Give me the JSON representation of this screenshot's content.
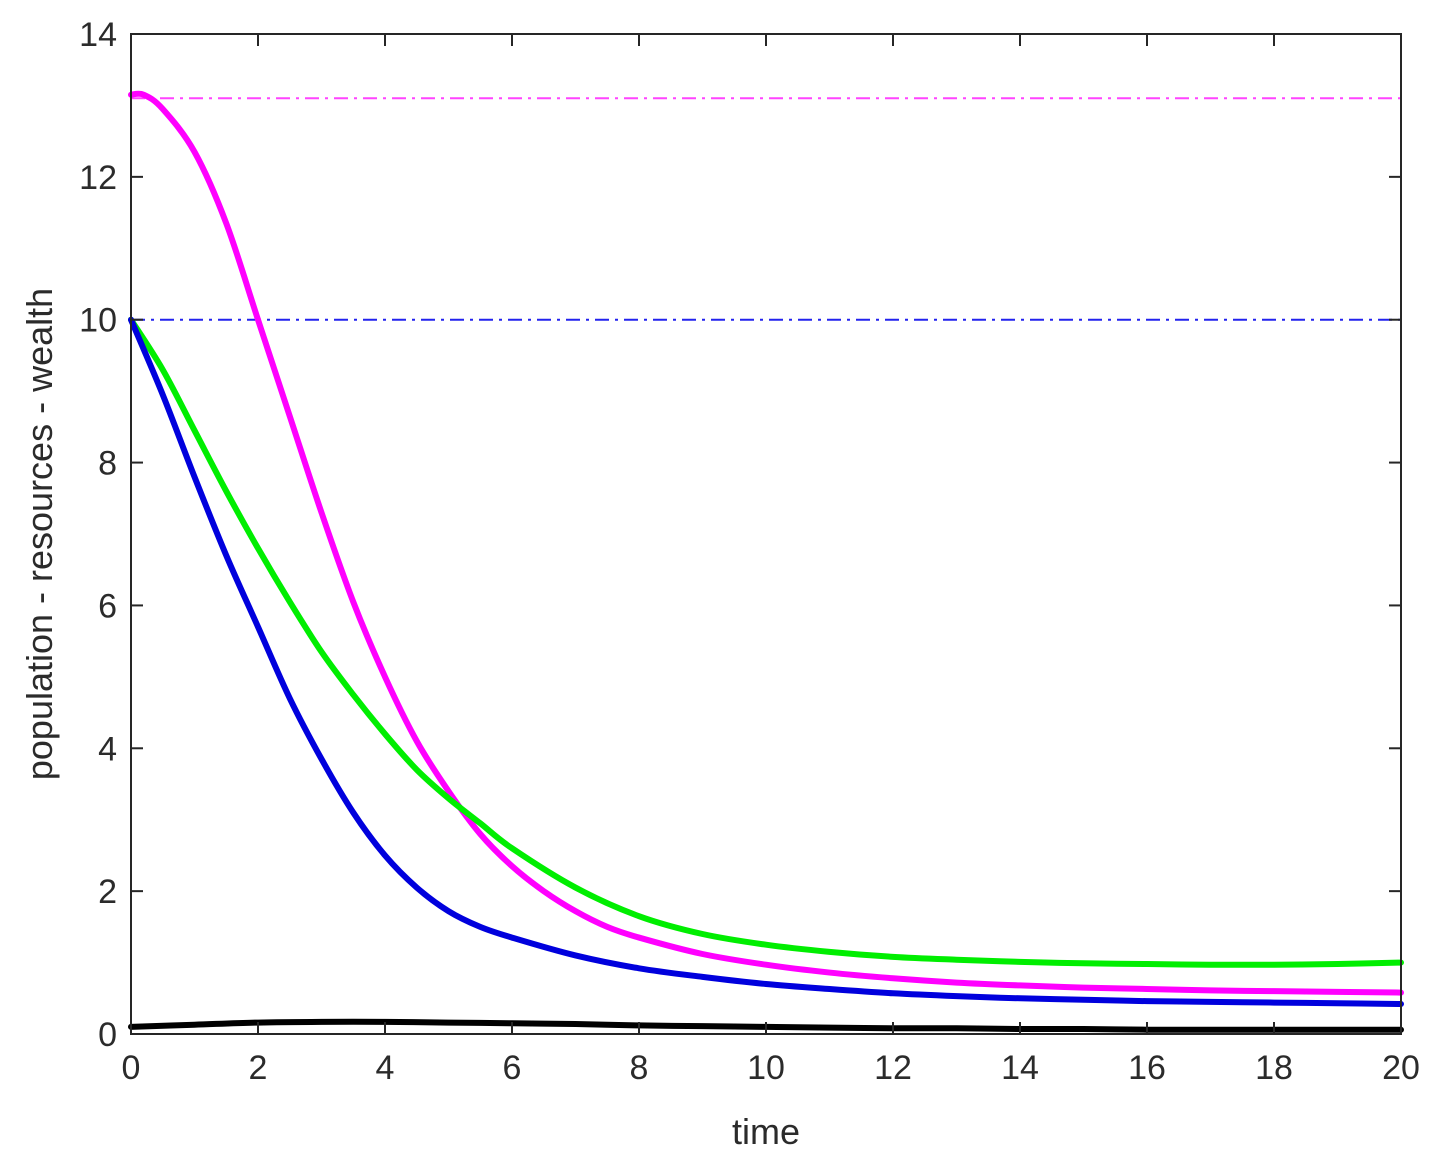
{
  "chart_data": {
    "type": "line",
    "title": "",
    "xlabel": "time",
    "ylabel": "population - resources - wealth",
    "xlim": [
      0,
      20
    ],
    "ylim": [
      0,
      14
    ],
    "xticks": [
      "0",
      "2",
      "4",
      "6",
      "8",
      "10",
      "12",
      "14",
      "16",
      "18",
      "20"
    ],
    "yticks": [
      "0",
      "2",
      "4",
      "6",
      "8",
      "10",
      "12",
      "14"
    ],
    "grid": false,
    "legend": "none",
    "series": [
      {
        "color": "#ff00ff",
        "style": "solid",
        "x": [
          0,
          0.2,
          0.5,
          1,
          1.5,
          2,
          2.5,
          3,
          3.5,
          4,
          4.5,
          5,
          5.5,
          6,
          6.5,
          7,
          7.5,
          8,
          9,
          10,
          11,
          12,
          13,
          14,
          15,
          16,
          17,
          18,
          19,
          20
        ],
        "y": [
          13.15,
          13.15,
          12.95,
          12.35,
          11.35,
          10.0,
          8.65,
          7.3,
          6.05,
          5.0,
          4.1,
          3.4,
          2.8,
          2.35,
          2.0,
          1.72,
          1.5,
          1.35,
          1.12,
          0.97,
          0.86,
          0.78,
          0.72,
          0.68,
          0.65,
          0.63,
          0.61,
          0.6,
          0.59,
          0.58
        ]
      },
      {
        "color": "#00ee00",
        "style": "solid",
        "x": [
          0,
          0.5,
          1,
          1.5,
          2,
          2.5,
          3,
          3.5,
          4,
          4.5,
          5,
          5.5,
          6,
          7,
          8,
          9,
          10,
          11,
          12,
          13,
          14,
          15,
          16,
          17,
          18,
          19,
          20
        ],
        "y": [
          10.0,
          9.3,
          8.45,
          7.6,
          6.8,
          6.05,
          5.35,
          4.75,
          4.2,
          3.7,
          3.3,
          2.95,
          2.6,
          2.05,
          1.65,
          1.4,
          1.25,
          1.15,
          1.08,
          1.04,
          1.01,
          0.99,
          0.98,
          0.97,
          0.97,
          0.98,
          1.0
        ]
      },
      {
        "color": "#0000dd",
        "style": "solid",
        "x": [
          0,
          0.5,
          1,
          1.5,
          2,
          2.5,
          3,
          3.5,
          4,
          4.5,
          5,
          5.5,
          6,
          7,
          8,
          9,
          10,
          11,
          12,
          13,
          14,
          15,
          16,
          17,
          18,
          19,
          20
        ],
        "y": [
          10.0,
          8.95,
          7.8,
          6.7,
          5.7,
          4.7,
          3.85,
          3.1,
          2.5,
          2.05,
          1.72,
          1.5,
          1.35,
          1.1,
          0.92,
          0.8,
          0.7,
          0.63,
          0.57,
          0.53,
          0.5,
          0.48,
          0.46,
          0.45,
          0.44,
          0.43,
          0.42
        ]
      },
      {
        "color": "#000000",
        "style": "solid",
        "x": [
          0,
          1,
          2,
          3,
          4,
          5,
          6,
          7,
          8,
          9,
          10,
          11,
          12,
          13,
          14,
          15,
          16,
          17,
          18,
          19,
          20
        ],
        "y": [
          0.1,
          0.13,
          0.16,
          0.17,
          0.17,
          0.16,
          0.15,
          0.14,
          0.12,
          0.11,
          0.1,
          0.09,
          0.08,
          0.08,
          0.07,
          0.07,
          0.06,
          0.06,
          0.06,
          0.06,
          0.06
        ]
      },
      {
        "color": "#ff44ff",
        "style": "dash-dot",
        "x": [
          0,
          20
        ],
        "y": [
          13.1,
          13.1
        ]
      },
      {
        "color": "#2222ee",
        "style": "dash-dot",
        "x": [
          0,
          20
        ],
        "y": [
          10.0,
          10.0
        ]
      }
    ]
  }
}
